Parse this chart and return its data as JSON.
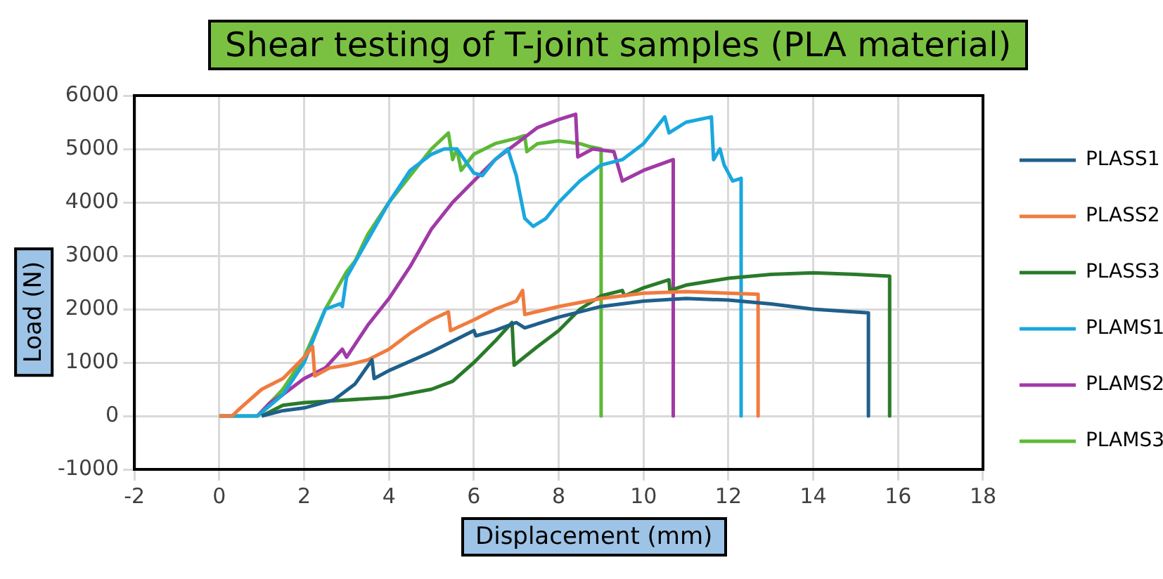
{
  "chart_data": {
    "type": "line",
    "title": "Shear testing of T-joint samples (PLA material)",
    "xlabel": "Displacement (mm)",
    "ylabel": "Load (N)",
    "xlim": [
      -2,
      18
    ],
    "xticks": [
      -2,
      0,
      2,
      4,
      6,
      8,
      10,
      12,
      14,
      16,
      18
    ],
    "ylim": [
      -1000,
      6000
    ],
    "yticks": [
      -1000,
      0,
      1000,
      2000,
      3000,
      4000,
      5000,
      6000
    ],
    "grid": true,
    "legend": "right",
    "marker": "none",
    "line_style": "solid",
    "series": [
      {
        "name": "PLASS1",
        "color": "#1f5f8b",
        "x": [
          1.0,
          1.5,
          2,
          2.7,
          3.2,
          3.6,
          3.65,
          4,
          5,
          6,
          6.05,
          6.5,
          7,
          7.2,
          8,
          9,
          10,
          11,
          12,
          13,
          14,
          15.3,
          15.3
        ],
        "values": [
          0,
          100,
          150,
          300,
          600,
          1050,
          700,
          850,
          1200,
          1600,
          1500,
          1600,
          1750,
          1650,
          1850,
          2050,
          2150,
          2200,
          2170,
          2100,
          2000,
          1930,
          0
        ]
      },
      {
        "name": "PLASS2",
        "color": "#f07b3f",
        "x": [
          0,
          0.3,
          0.5,
          1,
          1.5,
          2,
          2.2,
          2.25,
          2.6,
          3,
          3.5,
          4,
          4.5,
          5,
          5.4,
          5.45,
          6,
          6.5,
          7,
          7.15,
          7.2,
          8,
          9,
          10,
          11,
          12,
          12.7,
          12.7
        ],
        "values": [
          0,
          0,
          150,
          500,
          700,
          1100,
          1300,
          750,
          900,
          950,
          1050,
          1250,
          1550,
          1800,
          1950,
          1600,
          1800,
          2000,
          2150,
          2350,
          1900,
          2050,
          2200,
          2300,
          2330,
          2300,
          2280,
          0
        ]
      },
      {
        "name": "PLASS3",
        "color": "#2a7a2a",
        "x": [
          1.0,
          1.5,
          2,
          3,
          4,
          5,
          5.5,
          6,
          6.5,
          6.9,
          6.95,
          7.5,
          8,
          8.5,
          9,
          9.5,
          9.55,
          10,
          10.6,
          10.62,
          11,
          12,
          13,
          14,
          15,
          15.8,
          15.8
        ],
        "values": [
          0,
          200,
          250,
          300,
          350,
          500,
          650,
          1000,
          1400,
          1750,
          950,
          1300,
          1600,
          2000,
          2250,
          2350,
          2250,
          2400,
          2550,
          2350,
          2450,
          2580,
          2650,
          2680,
          2650,
          2620,
          0
        ]
      },
      {
        "name": "PLAMS1",
        "color": "#1aa7de",
        "x": [
          0,
          0.9,
          1.5,
          2,
          2.5,
          2.85,
          2.9,
          3.0,
          3.5,
          4,
          4.5,
          5,
          5.3,
          5.6,
          6,
          6.2,
          6.5,
          6.8,
          7.0,
          7.2,
          7.4,
          7.7,
          8,
          8.5,
          9,
          9.5,
          10,
          10.2,
          10.5,
          10.6,
          11,
          11.6,
          11.65,
          11.8,
          11.9,
          12.1,
          12.3,
          12.3
        ],
        "values": [
          0,
          0,
          400,
          1000,
          2000,
          2100,
          2050,
          2600,
          3300,
          4000,
          4600,
          4900,
          5000,
          5000,
          4550,
          4500,
          4800,
          5000,
          4500,
          3700,
          3550,
          3700,
          4000,
          4400,
          4700,
          4800,
          5100,
          5300,
          5600,
          5300,
          5500,
          5600,
          4800,
          5000,
          4700,
          4400,
          4450,
          0
        ]
      },
      {
        "name": "PLAMS2",
        "color": "#a03aa6",
        "x": [
          0.9,
          1.2,
          1.5,
          2,
          2.5,
          2.9,
          3.0,
          3.5,
          4,
          4.5,
          5,
          5.5,
          6,
          6.5,
          7,
          7.5,
          8,
          8.4,
          8.45,
          8.8,
          9.3,
          9.5,
          10,
          10.7,
          10.7
        ],
        "values": [
          0,
          250,
          400,
          700,
          900,
          1250,
          1100,
          1700,
          2200,
          2800,
          3500,
          4000,
          4400,
          4800,
          5100,
          5400,
          5550,
          5650,
          4850,
          5000,
          4950,
          4400,
          4600,
          4800,
          0
        ]
      },
      {
        "name": "PLAMS3",
        "color": "#5db937",
        "x": [
          0,
          0.9,
          1.5,
          2,
          2.5,
          3,
          3.2,
          3.5,
          4,
          4.5,
          5,
          5.4,
          5.5,
          5.6,
          5.7,
          6,
          6.5,
          7,
          7.2,
          7.25,
          7.5,
          8,
          8.5,
          8.7,
          9,
          9
        ],
        "values": [
          0,
          0,
          500,
          1100,
          2000,
          2700,
          2900,
          3400,
          4000,
          4500,
          5000,
          5300,
          4800,
          5000,
          4600,
          4900,
          5100,
          5200,
          5250,
          4950,
          5100,
          5150,
          5100,
          5050,
          5000,
          0
        ]
      }
    ]
  }
}
